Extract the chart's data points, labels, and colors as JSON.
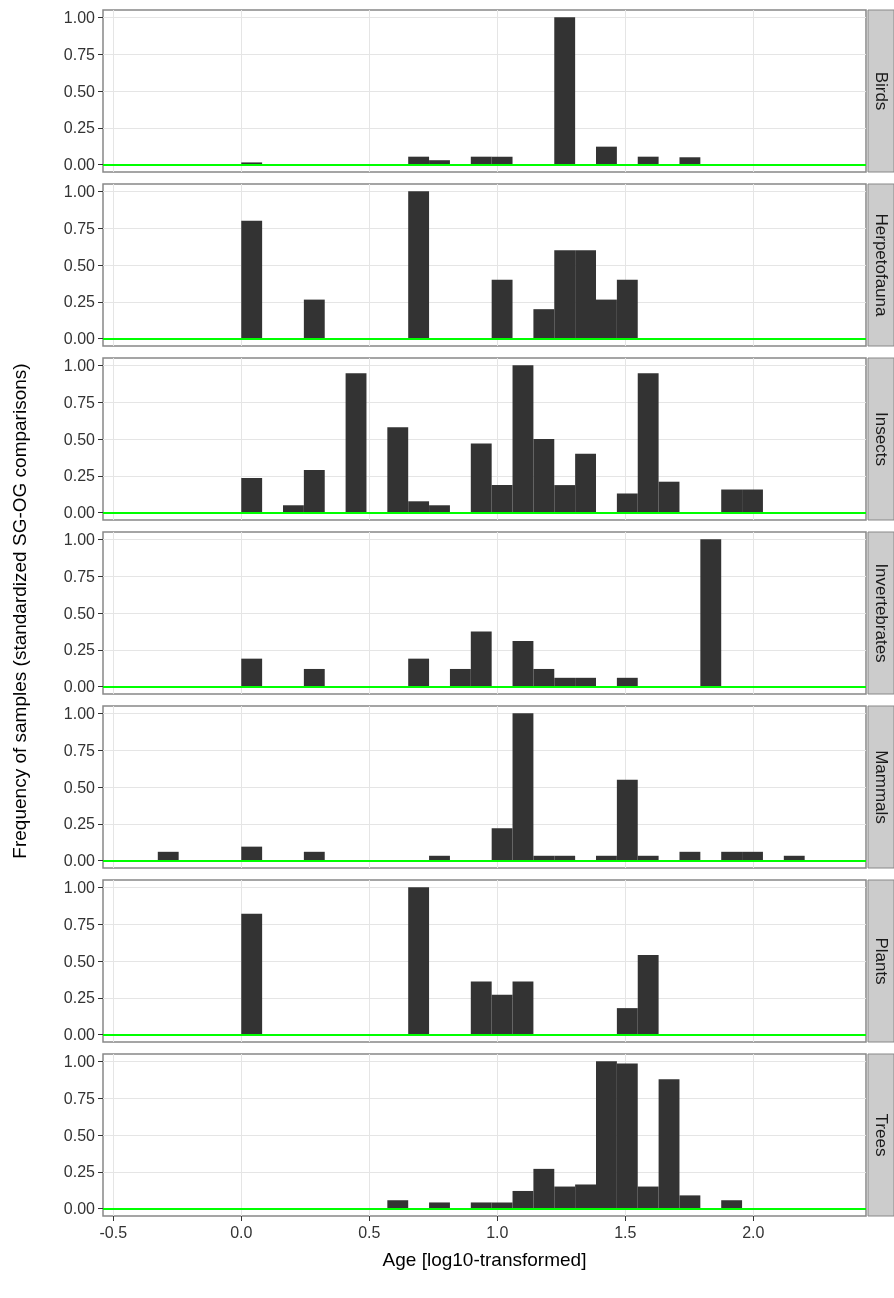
{
  "chart_data": [
    {
      "type": "histogram",
      "title": "Birds",
      "bins": [
        -0.326,
        -0.2445,
        -0.163,
        -0.0815,
        0,
        0.0815,
        0.163,
        0.2445,
        0.326,
        0.4075,
        0.489,
        0.5705,
        0.652,
        0.7335,
        0.815,
        0.8965,
        0.978,
        1.0595,
        1.141,
        1.2225,
        1.304,
        1.3855,
        1.467,
        1.5485,
        1.63,
        1.7115,
        1.793,
        1.8745,
        1.956,
        2.0375,
        2.119,
        2.2005
      ],
      "values": [
        0,
        0,
        0,
        0,
        0.015,
        0,
        0,
        0,
        0,
        0,
        0,
        0,
        0.054,
        0.03,
        0,
        0.054,
        0.054,
        0,
        0,
        1.0,
        0,
        0.122,
        0,
        0.054,
        0,
        0.05,
        0,
        0,
        0,
        0,
        0
      ],
      "color": "#333333",
      "xlim": [
        -0.54,
        2.44
      ],
      "ylim": [
        -0.05,
        1.05
      ],
      "xticks": [
        -0.5,
        0,
        0.5,
        1,
        1.5,
        2
      ],
      "yticks": [
        {
          "value": 0,
          "label": "0.00"
        },
        {
          "value": 0.25,
          "label": "0.25"
        },
        {
          "value": 0.5,
          "label": "0.50"
        },
        {
          "value": 0.75,
          "label": "0.75"
        },
        {
          "value": 1,
          "label": "1.00"
        }
      ],
      "ref_lines": [
        {
          "axis": "y",
          "value": 0,
          "color": "#00ff00"
        }
      ],
      "grid": true,
      "tick_labels": "y"
    },
    {
      "type": "histogram",
      "title": "Herpetofauna",
      "bins": [
        -0.326,
        -0.2445,
        -0.163,
        -0.0815,
        0,
        0.0815,
        0.163,
        0.2445,
        0.326,
        0.4075,
        0.489,
        0.5705,
        0.652,
        0.7335,
        0.815,
        0.8965,
        0.978,
        1.0595,
        1.141,
        1.2225,
        1.304,
        1.3855,
        1.467,
        1.5485,
        1.63,
        1.7115,
        1.793,
        1.8745,
        1.956,
        2.0375,
        2.119,
        2.2005
      ],
      "values": [
        0,
        0,
        0,
        0,
        0.8,
        0,
        0,
        0.265,
        0,
        0,
        0,
        0,
        1.0,
        0,
        0,
        0,
        0.4,
        0,
        0.2,
        0.6,
        0.6,
        0.265,
        0.4,
        0,
        0,
        0,
        0,
        0,
        0,
        0,
        0
      ],
      "color": "#333333",
      "xlim": [
        -0.54,
        2.44
      ],
      "ylim": [
        -0.05,
        1.05
      ],
      "xticks": [
        -0.5,
        0,
        0.5,
        1,
        1.5,
        2
      ],
      "yticks": [
        {
          "value": 0,
          "label": "0.00"
        },
        {
          "value": 0.25,
          "label": "0.25"
        },
        {
          "value": 0.5,
          "label": "0.50"
        },
        {
          "value": 0.75,
          "label": "0.75"
        },
        {
          "value": 1,
          "label": "1.00"
        }
      ],
      "ref_lines": [
        {
          "axis": "y",
          "value": 0,
          "color": "#00ff00"
        }
      ],
      "grid": true,
      "tick_labels": "y"
    },
    {
      "type": "histogram",
      "title": "Insects",
      "bins": [
        -0.326,
        -0.2445,
        -0.163,
        -0.0815,
        0,
        0.0815,
        0.163,
        0.2445,
        0.326,
        0.4075,
        0.489,
        0.5705,
        0.652,
        0.7335,
        0.815,
        0.8965,
        0.978,
        1.0595,
        1.141,
        1.2225,
        1.304,
        1.3855,
        1.467,
        1.5485,
        1.63,
        1.7115,
        1.793,
        1.8745,
        1.956,
        2.0375,
        2.119,
        2.2005
      ],
      "values": [
        0,
        0,
        0,
        0,
        0.235,
        0,
        0.05,
        0.29,
        0,
        0.947,
        0,
        0.58,
        0.077,
        0.05,
        0,
        0.47,
        0.187,
        1.0,
        0.5,
        0.187,
        0.4,
        0,
        0.13,
        0.947,
        0.21,
        0,
        0,
        0.157,
        0.157,
        0,
        0
      ],
      "color": "#333333",
      "xlim": [
        -0.54,
        2.44
      ],
      "ylim": [
        -0.05,
        1.05
      ],
      "xticks": [
        -0.5,
        0,
        0.5,
        1,
        1.5,
        2
      ],
      "yticks": [
        {
          "value": 0,
          "label": "0.00"
        },
        {
          "value": 0.25,
          "label": "0.25"
        },
        {
          "value": 0.5,
          "label": "0.50"
        },
        {
          "value": 0.75,
          "label": "0.75"
        },
        {
          "value": 1,
          "label": "1.00"
        }
      ],
      "ref_lines": [
        {
          "axis": "y",
          "value": 0,
          "color": "#00ff00"
        }
      ],
      "grid": true,
      "tick_labels": "y"
    },
    {
      "type": "histogram",
      "title": "Invertebrates",
      "ylabel": "Frequency of samples (standardized SG-OG comparisons)",
      "bins": [
        -0.326,
        -0.2445,
        -0.163,
        -0.0815,
        0,
        0.0815,
        0.163,
        0.2445,
        0.326,
        0.4075,
        0.489,
        0.5705,
        0.652,
        0.7335,
        0.815,
        0.8965,
        0.978,
        1.0595,
        1.141,
        1.2225,
        1.304,
        1.3855,
        1.467,
        1.5485,
        1.63,
        1.7115,
        1.793,
        1.8745,
        1.956,
        2.0375,
        2.119,
        2.2005
      ],
      "values": [
        0,
        0,
        0,
        0,
        0.19,
        0,
        0,
        0.12,
        0,
        0,
        0,
        0,
        0.19,
        0,
        0.12,
        0.375,
        0,
        0.31,
        0.12,
        0.06,
        0.06,
        0,
        0.06,
        0,
        0,
        0,
        1.0,
        0,
        0,
        0,
        0
      ],
      "color": "#333333",
      "xlim": [
        -0.54,
        2.44
      ],
      "ylim": [
        -0.05,
        1.05
      ],
      "xticks": [
        -0.5,
        0,
        0.5,
        1,
        1.5,
        2
      ],
      "yticks": [
        {
          "value": 0,
          "label": "0.00"
        },
        {
          "value": 0.25,
          "label": "0.25"
        },
        {
          "value": 0.5,
          "label": "0.50"
        },
        {
          "value": 0.75,
          "label": "0.75"
        },
        {
          "value": 1,
          "label": "1.00"
        }
      ],
      "ref_lines": [
        {
          "axis": "y",
          "value": 0,
          "color": "#00ff00"
        }
      ],
      "grid": true,
      "tick_labels": "y"
    },
    {
      "type": "histogram",
      "title": "Mammals",
      "bins": [
        -0.326,
        -0.2445,
        -0.163,
        -0.0815,
        0,
        0.0815,
        0.163,
        0.2445,
        0.326,
        0.4075,
        0.489,
        0.5705,
        0.652,
        0.7335,
        0.815,
        0.8965,
        0.978,
        1.0595,
        1.141,
        1.2225,
        1.304,
        1.3855,
        1.467,
        1.5485,
        1.63,
        1.7115,
        1.793,
        1.8745,
        1.956,
        2.0375,
        2.119,
        2.2005
      ],
      "values": [
        0.06,
        0,
        0,
        0,
        0.095,
        0,
        0,
        0.06,
        0,
        0,
        0,
        0,
        0,
        0.033,
        0,
        0,
        0.22,
        1.0,
        0.033,
        0.033,
        0,
        0.033,
        0.55,
        0.033,
        0,
        0.06,
        0,
        0.06,
        0.06,
        0,
        0.033
      ],
      "color": "#333333",
      "xlim": [
        -0.54,
        2.44
      ],
      "ylim": [
        -0.05,
        1.05
      ],
      "xticks": [
        -0.5,
        0,
        0.5,
        1,
        1.5,
        2
      ],
      "yticks": [
        {
          "value": 0,
          "label": "0.00"
        },
        {
          "value": 0.25,
          "label": "0.25"
        },
        {
          "value": 0.5,
          "label": "0.50"
        },
        {
          "value": 0.75,
          "label": "0.75"
        },
        {
          "value": 1,
          "label": "1.00"
        }
      ],
      "ref_lines": [
        {
          "axis": "y",
          "value": 0,
          "color": "#00ff00"
        }
      ],
      "grid": true,
      "tick_labels": "y"
    },
    {
      "type": "histogram",
      "title": "Plants",
      "bins": [
        -0.326,
        -0.2445,
        -0.163,
        -0.0815,
        0,
        0.0815,
        0.163,
        0.2445,
        0.326,
        0.4075,
        0.489,
        0.5705,
        0.652,
        0.7335,
        0.815,
        0.8965,
        0.978,
        1.0595,
        1.141,
        1.2225,
        1.304,
        1.3855,
        1.467,
        1.5485,
        1.63,
        1.7115,
        1.793,
        1.8745,
        1.956,
        2.0375,
        2.119,
        2.2005
      ],
      "values": [
        0,
        0,
        0,
        0,
        0.82,
        0,
        0,
        0,
        0,
        0,
        0,
        0,
        1.0,
        0,
        0,
        0.36,
        0.27,
        0.36,
        0,
        0,
        0,
        0,
        0.18,
        0.54,
        0,
        0,
        0,
        0,
        0,
        0,
        0
      ],
      "color": "#333333",
      "xlim": [
        -0.54,
        2.44
      ],
      "ylim": [
        -0.05,
        1.05
      ],
      "xticks": [
        -0.5,
        0,
        0.5,
        1,
        1.5,
        2
      ],
      "yticks": [
        {
          "value": 0,
          "label": "0.00"
        },
        {
          "value": 0.25,
          "label": "0.25"
        },
        {
          "value": 0.5,
          "label": "0.50"
        },
        {
          "value": 0.75,
          "label": "0.75"
        },
        {
          "value": 1,
          "label": "1.00"
        }
      ],
      "ref_lines": [
        {
          "axis": "y",
          "value": 0,
          "color": "#00ff00"
        }
      ],
      "grid": true,
      "tick_labels": "y"
    },
    {
      "type": "histogram",
      "title": "Trees",
      "xlabel": "Age [log10-transformed]",
      "bins": [
        -0.326,
        -0.2445,
        -0.163,
        -0.0815,
        0,
        0.0815,
        0.163,
        0.2445,
        0.326,
        0.4075,
        0.489,
        0.5705,
        0.652,
        0.7335,
        0.815,
        0.8965,
        0.978,
        1.0595,
        1.141,
        1.2225,
        1.304,
        1.3855,
        1.467,
        1.5485,
        1.63,
        1.7115,
        1.793,
        1.8745,
        1.956,
        2.0375,
        2.119,
        2.2005
      ],
      "values": [
        0,
        0,
        0,
        0,
        0,
        0,
        0,
        0,
        0,
        0,
        0,
        0.057,
        0,
        0.042,
        0,
        0.042,
        0.042,
        0.12,
        0.27,
        0.15,
        0.164,
        1.0,
        0.985,
        0.15,
        0.878,
        0.09,
        0,
        0.057,
        0,
        0,
        0
      ],
      "color": "#333333",
      "xlim": [
        -0.54,
        2.44
      ],
      "ylim": [
        -0.05,
        1.05
      ],
      "xticks": [
        {
          "value": -0.5,
          "label": "-0.5"
        },
        {
          "value": 0,
          "label": "0.0"
        },
        {
          "value": 0.5,
          "label": "0.5"
        },
        {
          "value": 1,
          "label": "1.0"
        },
        {
          "value": 1.5,
          "label": "1.5"
        },
        {
          "value": 2,
          "label": "2.0"
        }
      ],
      "yticks": [
        {
          "value": 0,
          "label": "0.00"
        },
        {
          "value": 0.25,
          "label": "0.25"
        },
        {
          "value": 0.5,
          "label": "0.50"
        },
        {
          "value": 0.75,
          "label": "0.75"
        },
        {
          "value": 1,
          "label": "1.00"
        }
      ],
      "ref_lines": [
        {
          "axis": "y",
          "value": 0,
          "color": "#00ff00"
        }
      ],
      "grid": true
    }
  ]
}
